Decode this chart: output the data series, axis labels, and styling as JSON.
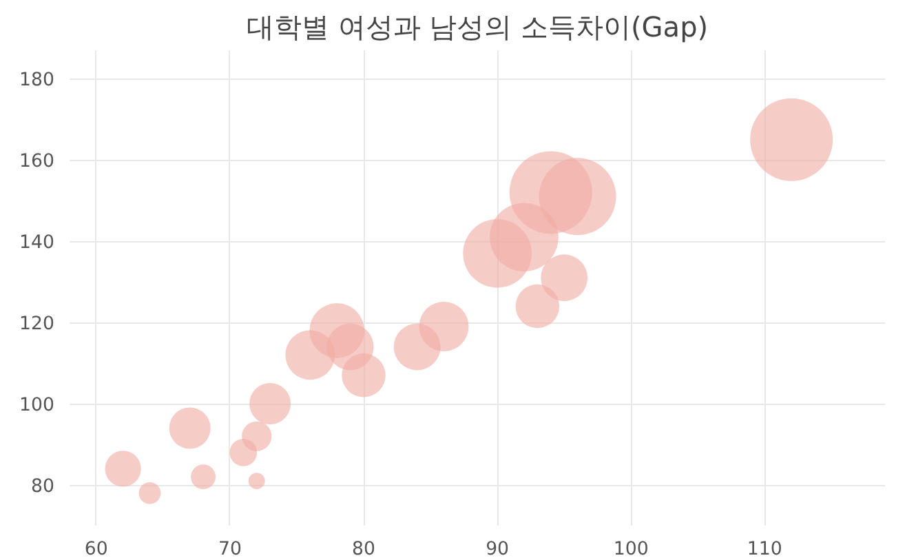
{
  "chart_data": {
    "type": "bubble",
    "title": "대학별 여성과 남성의 소득차이(Gap)",
    "x": [
      62,
      64,
      67,
      68,
      71,
      72,
      72,
      73,
      76,
      78,
      79,
      80,
      84,
      86,
      90,
      92,
      93,
      94,
      95,
      96,
      112
    ],
    "values": [
      84,
      78,
      94,
      82,
      88,
      81,
      92,
      100,
      112,
      118,
      114,
      107,
      114,
      119,
      137,
      141,
      124,
      152,
      131,
      151,
      165
    ],
    "sizes": [
      0.19,
      0.07,
      0.25,
      0.09,
      0.11,
      0.04,
      0.13,
      0.25,
      0.36,
      0.44,
      0.32,
      0.28,
      0.32,
      0.36,
      0.69,
      0.69,
      0.28,
      1,
      0.32,
      0.87,
      1
    ],
    "color": "#f0aaa2",
    "xlim": [
      58,
      119
    ],
    "ylim": [
      70,
      187
    ],
    "xticks": [
      60,
      70,
      80,
      90,
      100,
      110
    ],
    "yticks": [
      80,
      100,
      120,
      140,
      160,
      180
    ],
    "grid": true
  }
}
